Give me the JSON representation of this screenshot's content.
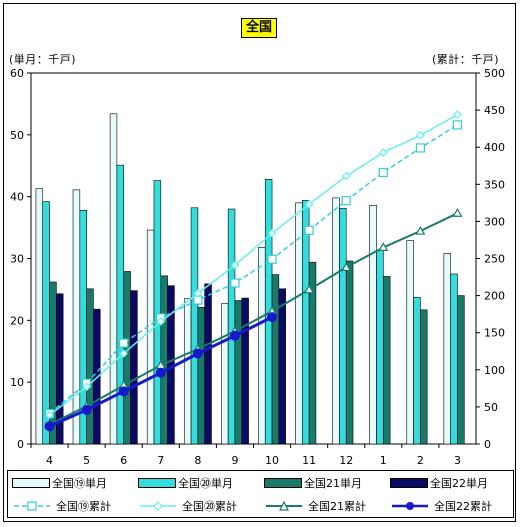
{
  "title": "全国",
  "left_axis_unit": "(単月：千戸)",
  "right_axis_unit": "(累計：千戸)",
  "colors": {
    "s19m": "#e6fbfb",
    "s20m": "#33dddd",
    "s21m": "#1a7a6a",
    "s22m": "#0a0a66",
    "l19": "#33ccdd",
    "l20": "#66eeee",
    "l21": "#1a7a6a",
    "l22": "#1818cc"
  },
  "chart_data": {
    "type": "bar",
    "categories": [
      "4",
      "5",
      "6",
      "7",
      "8",
      "9",
      "10",
      "11",
      "12",
      "1",
      "2",
      "3"
    ],
    "left_axis": {
      "ylim": [
        0,
        60
      ],
      "ticks": [
        "0",
        "10",
        "20",
        "30",
        "40",
        "50",
        "60"
      ]
    },
    "right_axis": {
      "ylim": [
        0,
        500
      ],
      "ticks": [
        "0",
        "50",
        "100",
        "150",
        "200",
        "250",
        "300",
        "350",
        "400",
        "450",
        "500"
      ]
    },
    "bar_series": [
      {
        "name": "全国⑲単月",
        "values": [
          41.3,
          41.1,
          53.4,
          34.6,
          23.5,
          22.7,
          31.8,
          39.0,
          39.8,
          38.6,
          32.9,
          30.8
        ]
      },
      {
        "name": "全国⑳単月",
        "values": [
          39.2,
          37.8,
          45.1,
          42.6,
          38.2,
          38.0,
          42.8,
          39.4,
          38.1,
          31.3,
          23.7,
          27.5
        ]
      },
      {
        "name": "全国21単月",
        "values": [
          26.2,
          25.1,
          27.9,
          27.2,
          22.1,
          23.2,
          27.4,
          29.4,
          29.6,
          27.1,
          21.7,
          24.0
        ]
      },
      {
        "name": "全国22単月",
        "values": [
          24.3,
          21.8,
          24.8,
          25.6,
          25.9,
          23.6,
          25.1
        ]
      }
    ],
    "line_series": [
      {
        "name": "全国⑲累計",
        "values": [
          41,
          82,
          136,
          170,
          194,
          217,
          249,
          288,
          328,
          366,
          399,
          430
        ]
      },
      {
        "name": "全国⑳累計",
        "values": [
          39,
          77,
          122,
          165,
          203,
          241,
          284,
          323,
          361,
          393,
          416,
          444
        ]
      },
      {
        "name": "全国21累計",
        "values": [
          26,
          51,
          79,
          106,
          128,
          152,
          179,
          208,
          238,
          265,
          287,
          311
        ]
      },
      {
        "name": "全国22累計",
        "values": [
          24,
          46,
          71,
          96,
          122,
          146,
          171
        ]
      }
    ]
  }
}
